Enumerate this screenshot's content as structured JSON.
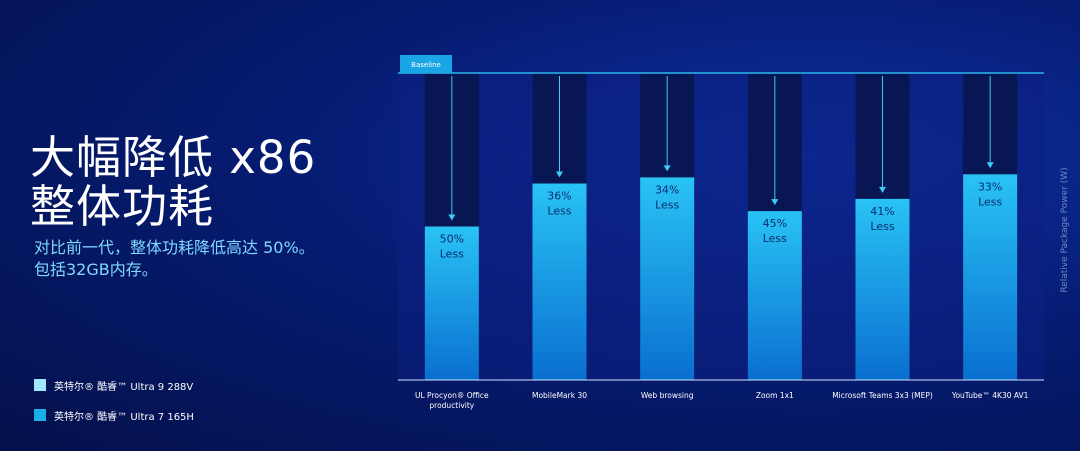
{
  "headline": {
    "line1": "大幅降低 x86",
    "line2": "整体功耗"
  },
  "subtitle": {
    "line1": "对比前一代，整体功耗降低高达 50%。",
    "line2": "包括32GB内存。"
  },
  "legend": [
    {
      "label": "英特尔® 酷睿™ Ultra 9 288V",
      "color": "#9fe6ff"
    },
    {
      "label": "英特尔® 酷睿™ Ultra 7 165H",
      "color": "#1aaeea"
    }
  ],
  "chart_data": {
    "type": "bar",
    "baseline_label": "Baseline",
    "ylabel": "Relative Package Power (W)",
    "ylim": [
      0,
      100
    ],
    "categories": [
      [
        "UL Procyon® Office",
        "productivity"
      ],
      [
        "MobileMark 30"
      ],
      [
        "Web browsing"
      ],
      [
        "Zoom 1x1"
      ],
      [
        "Microsoft Teams 3x3 (MEP)"
      ],
      [
        "YouTube™ 4K30 AV1"
      ]
    ],
    "series": [
      {
        "values": [
          100,
          100,
          100,
          100,
          100,
          100
        ]
      },
      {
        "values": [
          50,
          64,
          66,
          55,
          59,
          67
        ]
      }
    ],
    "reduction_labels": [
      [
        "50%",
        "Less"
      ],
      [
        "36%",
        "Less"
      ],
      [
        "34%",
        "Less"
      ],
      [
        "45%",
        "Less"
      ],
      [
        "41%",
        "Less"
      ],
      [
        "33%",
        "Less"
      ]
    ]
  }
}
